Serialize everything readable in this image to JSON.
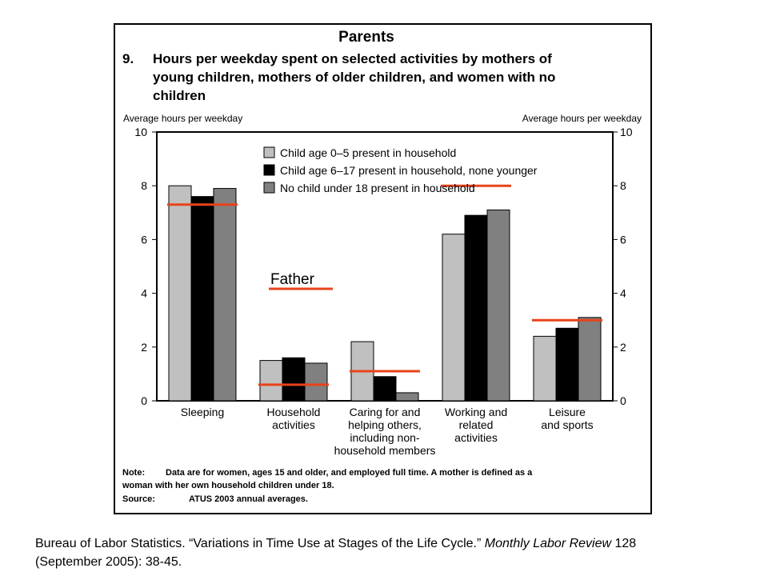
{
  "chart_data": {
    "type": "bar",
    "header": "Parents",
    "figure_number": "9.",
    "title_lines": [
      "Hours per weekday spent on selected activities by mothers of",
      "young children, mothers of older children, and women with no",
      "children"
    ],
    "ylabel_left": "Average hours per weekday",
    "ylabel_right": "Average hours per weekday",
    "ylim": [
      0,
      10
    ],
    "yticks": [
      "0",
      "2",
      "4",
      "6",
      "8",
      "10"
    ],
    "categories": [
      [
        "Sleeping"
      ],
      [
        "Household",
        "activities"
      ],
      [
        "Caring for and",
        "helping others,",
        "including non-",
        "household members"
      ],
      [
        "Working and",
        "related",
        "activities"
      ],
      [
        "Leisure",
        "and sports"
      ]
    ],
    "series": [
      {
        "name": "Child age 0–5 present in household",
        "color": "#c0c0c0",
        "values": [
          8.0,
          1.5,
          2.2,
          6.2,
          2.4
        ]
      },
      {
        "name": "Child age 6–17 present in household, none younger",
        "color": "#000000",
        "values": [
          7.6,
          1.6,
          0.9,
          6.9,
          2.7
        ]
      },
      {
        "name": "No child under 18 present in household",
        "color": "#808080",
        "values": [
          7.9,
          1.4,
          0.3,
          7.1,
          3.1
        ]
      }
    ],
    "overlay": {
      "label": "Father",
      "color": "#e8431a",
      "values": [
        7.3,
        0.6,
        1.1,
        8.0,
        3.0
      ]
    },
    "legend_position": "top-center",
    "grid": false,
    "note_label": "Note:",
    "note_text_lines": [
      "Data are for women, ages 15 and older, and employed full time. A mother is defined as a",
      "woman with her own household children under 18."
    ],
    "source_label": "Source:",
    "source_text": "ATUS 2003 annual averages."
  },
  "citation": {
    "pre": "Bureau of Labor Statistics. “Variations in Time Use at Stages of the Life Cycle.” ",
    "journal": "Monthly Labor Review",
    "post": " 128",
    "line2": "(September 2005): 38-45."
  }
}
